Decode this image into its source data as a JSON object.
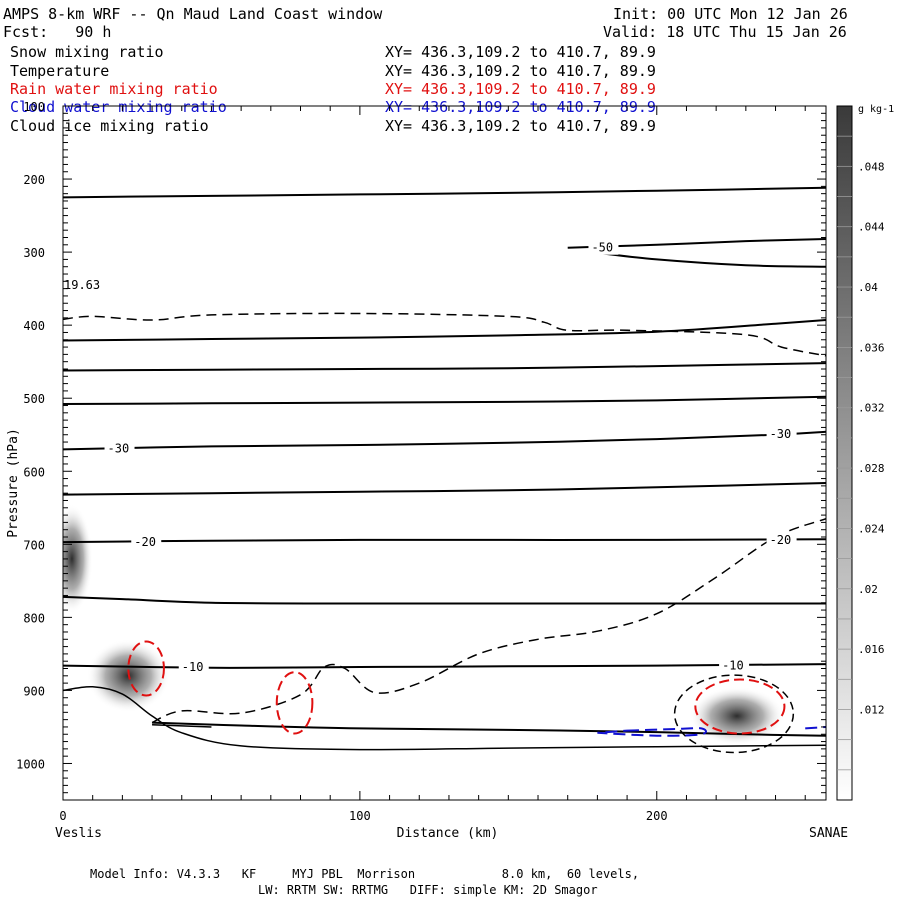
{
  "header": {
    "title": "AMPS 8-km WRF -- Qn Maud Land Coast window",
    "fcst": "Fcst:   90 h",
    "init": "Init: 00 UTC Mon 12 Jan 26",
    "valid": "Valid: 18 UTC Thu 15 Jan 26"
  },
  "fields": [
    {
      "name": "Snow mixing ratio",
      "xy": "XY= 436.3,109.2 to 410.7, 89.9",
      "color": "#000000"
    },
    {
      "name": "Temperature",
      "xy": "XY= 436.3,109.2 to 410.7, 89.9",
      "color": "#000000"
    },
    {
      "name": "Rain water mixing ratio",
      "xy": "XY= 436.3,109.2 to 410.7, 89.9",
      "color": "#e01010"
    },
    {
      "name": "Cloud water mixing ratio",
      "xy": "XY= 436.3,109.2 to 410.7, 89.9",
      "color": "#1010d0"
    },
    {
      "name": "Cloud ice mixing ratio",
      "xy": "XY= 436.3,109.2 to 410.7, 89.9",
      "color": "#000000"
    }
  ],
  "footer": {
    "line1": "Model Info: V4.3.3   KF     MYJ PBL  Morrison            8.0 km,  60 levels,",
    "line2": "LW: RRTM SW: RRTMG   DIFF: simple KM: 2D Smagor"
  },
  "chart_data": {
    "type": "contour-cross-section",
    "xlabel": "Distance (km)",
    "ylabel": "Pressure (hPa)",
    "xlim": [
      0,
      257
    ],
    "ylim": [
      1050,
      100
    ],
    "x_ticks": [
      0,
      100,
      200
    ],
    "y_ticks": [
      100,
      200,
      300,
      400,
      500,
      600,
      700,
      800,
      900,
      1000
    ],
    "left_endpoint": "Veslis",
    "right_endpoint": "SANAE",
    "max_label": "19.63",
    "colorbar": {
      "units": "g kg-1",
      "ticks": [
        ".048",
        ".044",
        ".04",
        ".036",
        ".032",
        ".028",
        ".024",
        ".02",
        ".016",
        ".012"
      ]
    },
    "temperature_contours": [
      {
        "label": "-50",
        "label_x": 178,
        "label_p": 294,
        "points": [
          [
            170,
            294
          ],
          [
            200,
            290
          ],
          [
            230,
            285
          ],
          [
            257,
            282
          ]
        ]
      },
      {
        "label": "-50",
        "label_x": null,
        "label_p": null,
        "points": [
          [
            180,
            301
          ],
          [
            200,
            310
          ],
          [
            230,
            318
          ],
          [
            257,
            320
          ]
        ]
      },
      {
        "label": "",
        "label_x": null,
        "label_p": null,
        "points": [
          [
            0,
            225
          ],
          [
            50,
            223
          ],
          [
            100,
            221
          ],
          [
            150,
            219
          ],
          [
            200,
            216
          ],
          [
            257,
            212
          ]
        ]
      },
      {
        "label": "",
        "label_x": null,
        "label_p": null,
        "points": [
          [
            0,
            421
          ],
          [
            50,
            419
          ],
          [
            100,
            417
          ],
          [
            150,
            414
          ],
          [
            200,
            409
          ],
          [
            240,
            398
          ],
          [
            257,
            393
          ]
        ]
      },
      {
        "label": "",
        "label_x": null,
        "label_p": null,
        "points": [
          [
            0,
            462
          ],
          [
            50,
            461
          ],
          [
            100,
            460
          ],
          [
            150,
            459
          ],
          [
            200,
            456
          ],
          [
            257,
            452
          ]
        ]
      },
      {
        "label": "",
        "label_x": null,
        "label_p": null,
        "points": [
          [
            0,
            508
          ],
          [
            50,
            507
          ],
          [
            100,
            506
          ],
          [
            150,
            505
          ],
          [
            200,
            503
          ],
          [
            257,
            498
          ]
        ]
      },
      {
        "label": "-30",
        "label_x": 15,
        "label_p": 569,
        "points": [
          [
            0,
            570
          ],
          [
            50,
            566
          ],
          [
            100,
            564
          ],
          [
            150,
            561
          ],
          [
            200,
            556
          ],
          [
            240,
            550
          ],
          [
            257,
            546
          ]
        ]
      },
      {
        "label": "",
        "label_x": null,
        "label_p": null,
        "points": [
          [
            0,
            632
          ],
          [
            50,
            630
          ],
          [
            100,
            628
          ],
          [
            150,
            626
          ],
          [
            200,
            622
          ],
          [
            257,
            616
          ]
        ]
      },
      {
        "label": "-20",
        "label_x": 24,
        "label_p": 697,
        "points": [
          [
            0,
            697
          ],
          [
            50,
            695
          ],
          [
            100,
            694
          ],
          [
            150,
            694
          ],
          [
            200,
            694
          ],
          [
            257,
            693
          ]
        ]
      },
      {
        "label": "",
        "label_x": null,
        "label_p": null,
        "points": [
          [
            0,
            772
          ],
          [
            20,
            775
          ],
          [
            50,
            780
          ],
          [
            100,
            781
          ],
          [
            150,
            781
          ],
          [
            200,
            781
          ],
          [
            257,
            781
          ]
        ]
      },
      {
        "label": "-10",
        "label_x": 40,
        "label_p": 868,
        "points": [
          [
            0,
            866
          ],
          [
            50,
            869
          ],
          [
            100,
            868
          ],
          [
            150,
            867
          ],
          [
            200,
            866
          ],
          [
            257,
            864
          ]
        ]
      },
      {
        "label": "",
        "label_x": null,
        "label_p": null,
        "points": [
          [
            30,
            944
          ],
          [
            60,
            948
          ],
          [
            100,
            952
          ],
          [
            150,
            954
          ],
          [
            200,
            957
          ],
          [
            230,
            960
          ],
          [
            257,
            962
          ]
        ]
      }
    ],
    "temperature_labels": [
      {
        "label": "-50",
        "x": 178,
        "p": 294
      },
      {
        "label": "-30",
        "x": 15,
        "p": 569
      },
      {
        "label": "-30",
        "x": 238,
        "p": 549
      },
      {
        "label": "-20",
        "x": 24,
        "p": 697
      },
      {
        "label": "-20",
        "x": 238,
        "p": 694
      },
      {
        "label": "-10",
        "x": 40,
        "p": 868
      },
      {
        "label": "-10",
        "x": 222,
        "p": 866
      }
    ],
    "ice_contour_dashed": [
      [
        0,
        392
      ],
      [
        10,
        388
      ],
      [
        30,
        393
      ],
      [
        50,
        386
      ],
      [
        100,
        384
      ],
      [
        150,
        388
      ],
      [
        162,
        396
      ],
      [
        170,
        407
      ],
      [
        190,
        407
      ],
      [
        230,
        413
      ],
      [
        242,
        430
      ],
      [
        257,
        442
      ]
    ],
    "snow_contour_dashed": [
      [
        30,
        944
      ],
      [
        40,
        928
      ],
      [
        60,
        931
      ],
      [
        80,
        906
      ],
      [
        88,
        868
      ],
      [
        95,
        870
      ],
      [
        105,
        903
      ],
      [
        120,
        890
      ],
      [
        140,
        850
      ],
      [
        160,
        830
      ],
      [
        180,
        819
      ],
      [
        200,
        795
      ],
      [
        220,
        745
      ],
      [
        240,
        690
      ],
      [
        257,
        665
      ]
    ],
    "terrain_lines": [
      {
        "points": [
          [
            0,
            900
          ],
          [
            10,
            895
          ],
          [
            20,
            905
          ],
          [
            30,
            935
          ],
          [
            40,
            958
          ],
          [
            60,
            976
          ],
          [
            100,
            981
          ],
          [
            150,
            979
          ],
          [
            200,
            977
          ],
          [
            257,
            975
          ]
        ]
      },
      {
        "points": [
          [
            30,
            947
          ],
          [
            50,
            950
          ]
        ]
      }
    ],
    "rain_ellipses": [
      {
        "cx": 28,
        "cp": 870,
        "rx": 6,
        "rp": 37
      },
      {
        "cx": 78,
        "cp": 917,
        "rx": 6,
        "rp": 42
      },
      {
        "cx": 228,
        "cp": 922,
        "rx": 15,
        "rp": 37
      }
    ],
    "snow_blobs": [
      {
        "cx": 22,
        "cp": 880,
        "rx": 14,
        "rp": 50,
        "value": 0.04
      },
      {
        "cx": 3,
        "cp": 720,
        "rx": 7,
        "rp": 75,
        "value": 0.025
      },
      {
        "cx": 227,
        "cp": 935,
        "rx": 16,
        "rp": 40,
        "value": 0.03
      }
    ],
    "cloud_ice_dashed_ellipse": {
      "cx": 226,
      "cp": 932,
      "rx": 20,
      "rp": 53
    },
    "cloud_water_dashed": [
      [
        190,
        955
      ],
      [
        205,
        953
      ],
      [
        215,
        952
      ],
      [
        215,
        960
      ],
      [
        200,
        962
      ],
      [
        180,
        958
      ]
    ],
    "cloud_water_dashed_right": [
      [
        250,
        952
      ],
      [
        257,
        950
      ]
    ]
  }
}
